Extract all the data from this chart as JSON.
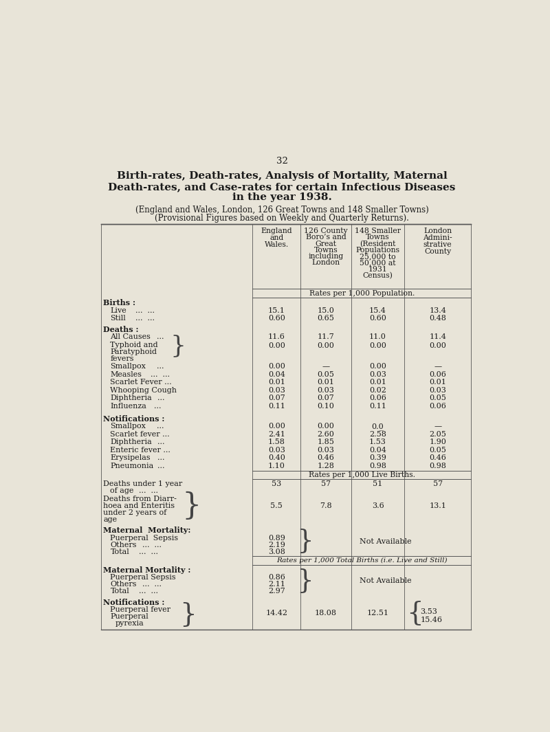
{
  "page_number": "32",
  "title_line1": "Birth-rates, Death-rates, Analysis of Mortality, Maternal",
  "title_line2": "Death-rates, and Case-rates for certain Infectious Diseases",
  "title_line3": "in the year 1938.",
  "subtitle_line1": "(England and Wales, London, 126 Great Towns and 148 Smaller Towns)",
  "subtitle_line2": "(Provisional Figures based on Weekly and Quarterly Returns).",
  "section_header_rates1": "Rates per 1,000 Population.",
  "section_header_rates2": "Rates per 1,000 Live Births.",
  "section_header_rates3": "Rates per 1,000 Total Births (i.e. Live and Still)",
  "bg_color": "#e8e4d8",
  "text_color": "#1a1a1a",
  "line_color": "#555555",
  "font_size_title": 11.0,
  "font_size_subtitle": 8.5,
  "font_size_table": 8.0,
  "font_size_header": 7.8,
  "font_size_page": 9.5
}
